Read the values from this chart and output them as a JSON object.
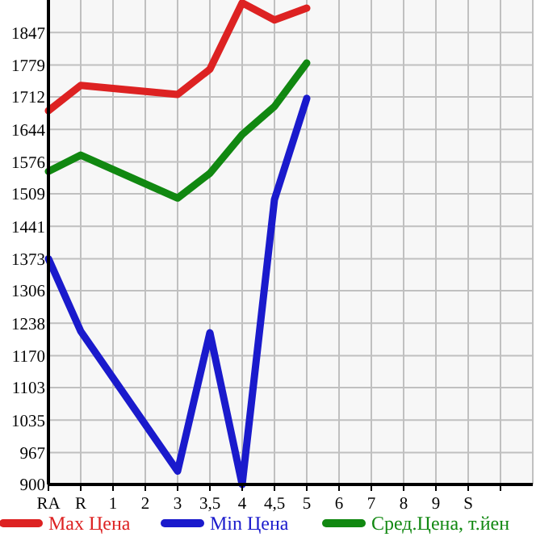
{
  "chart_data": {
    "type": "line",
    "categories": [
      "RA",
      "R",
      "1",
      "2",
      "3",
      "3,5",
      "4",
      "4,5",
      "5",
      "6",
      "7",
      "8",
      "9",
      "S",
      null
    ],
    "ylim": [
      900,
      1915
    ],
    "yticks": [
      900,
      967,
      1035,
      1103,
      1170,
      1238,
      1306,
      1373,
      1441,
      1509,
      1576,
      1644,
      1712,
      1779,
      1847
    ],
    "grid": true,
    "legend": "bottom",
    "marker": "none",
    "line_style": "solid",
    "series": [
      {
        "name": "Max Цена",
        "color": "#dd2222",
        "values": [
          1683,
          1736,
          null,
          null,
          1717,
          1770,
          1909,
          1873,
          1898,
          null,
          null,
          null,
          null,
          null,
          null
        ]
      },
      {
        "name": "Min Цена",
        "color": "#1a1acc",
        "values": [
          1373,
          1221,
          null,
          null,
          928,
          1218,
          900,
          1497,
          1709,
          null,
          null,
          null,
          null,
          null,
          null
        ]
      },
      {
        "name": "Сред.Цена, т.йен",
        "color": "#118811",
        "values": [
          1556,
          1590,
          null,
          null,
          1500,
          1552,
          1633,
          1692,
          1783,
          null,
          null,
          null,
          null,
          null,
          null
        ]
      }
    ]
  }
}
